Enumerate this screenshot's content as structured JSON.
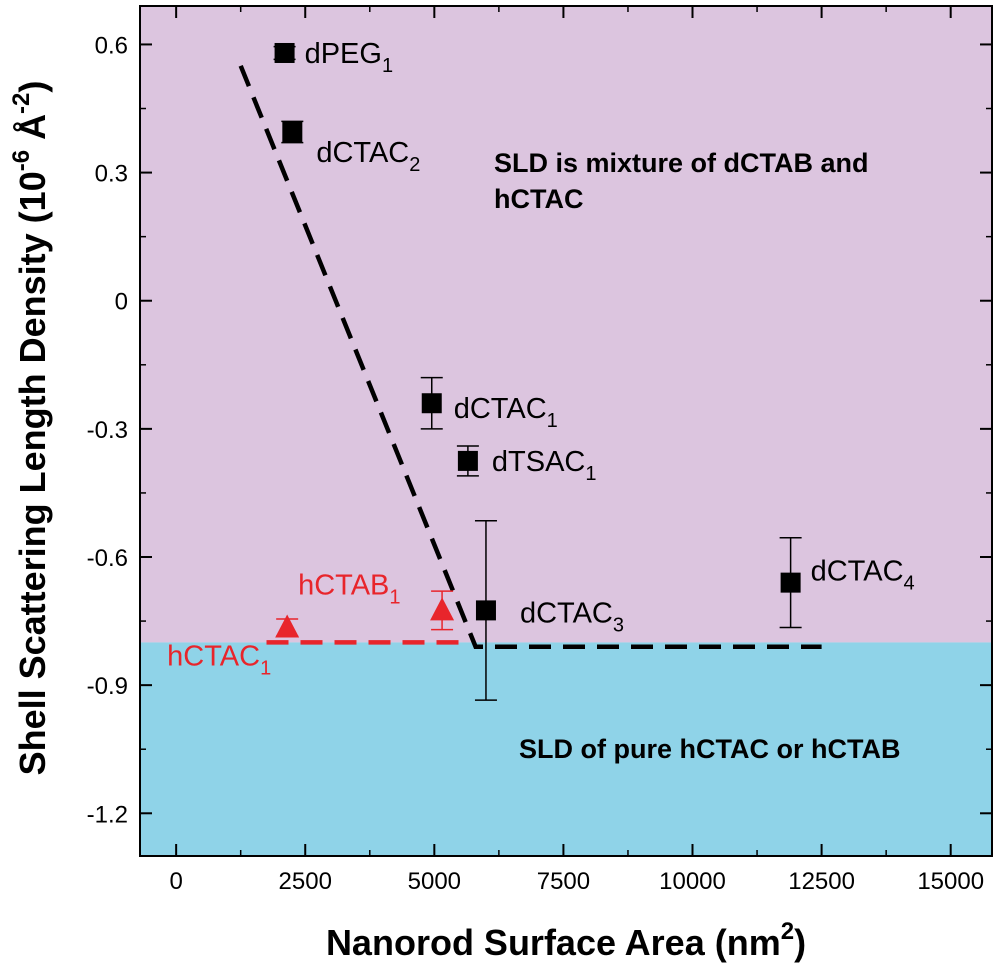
{
  "chart_data": {
    "type": "scatter",
    "xlabel": "Nanorod Surface Area (nm2)",
    "xlabel_main": "Nanorod Surface Area (nm",
    "xlabel_sup": "2",
    "xlabel_end": ")",
    "ylabel": "Shell Scattering Length Density (10-6 Å-2)",
    "ylabel_main": "Shell Scattering Length Density (10",
    "ylabel_sup1": "-6",
    "ylabel_mid": " Å",
    "ylabel_sup2": "-2",
    "ylabel_end": ")",
    "xlim": [
      -700,
      15800
    ],
    "ylim": [
      -1.3,
      0.69
    ],
    "x_ticks": [
      0,
      2500,
      5000,
      7500,
      10000,
      12500,
      15000
    ],
    "x_tick_labels": [
      "0",
      "2500",
      "5000",
      "7500",
      "10000",
      "12500",
      "15000"
    ],
    "y_ticks": [
      0.6,
      0.3,
      0,
      -0.3,
      -0.6,
      -0.9,
      -1.2
    ],
    "y_tick_labels": [
      "0.6",
      "0.3",
      "0",
      "-0.3",
      "-0.6",
      "-0.9",
      "-1.2"
    ],
    "grid": false,
    "regions": [
      {
        "text": "SLD is mixture of dCTAB and",
        "text2": "hCTAC",
        "color": "#dcc5df",
        "y_range": [
          -0.8,
          0.69
        ]
      },
      {
        "text": "SLD of pure hCTAC or hCTAB",
        "text2": "",
        "color": "#8fd3e8",
        "y_range": [
          -1.3,
          -0.8
        ]
      }
    ],
    "series": [
      {
        "marker": "square",
        "color": "#000000",
        "points": [
          {
            "label": "dPEG",
            "sub": "1",
            "x": 2100,
            "y": 0.58,
            "err": 0.015
          },
          {
            "label": "dCTAC",
            "sub": "2",
            "x": 2250,
            "y": 0.395,
            "err": 0.025
          },
          {
            "label": "dCTAC",
            "sub": "1",
            "x": 4950,
            "y": -0.24,
            "err": 0.06
          },
          {
            "label": "dTSAC",
            "sub": "1",
            "x": 5650,
            "y": -0.375,
            "err": 0.035
          },
          {
            "label": "dCTAC",
            "sub": "3",
            "x": 6000,
            "y": -0.725,
            "err": 0.21
          },
          {
            "label": "dCTAC",
            "sub": "4",
            "x": 11900,
            "y": -0.66,
            "err": 0.105
          }
        ]
      },
      {
        "marker": "triangle",
        "color": "#e8252b",
        "points": [
          {
            "label": "hCTAC",
            "sub": "1",
            "x": 2150,
            "y": -0.765,
            "err": 0.02
          },
          {
            "label": "hCTAB",
            "sub": "1",
            "x": 5150,
            "y": -0.725,
            "err": 0.045
          }
        ]
      }
    ],
    "fit_lines": [
      {
        "color": "#000000",
        "style": "dashed",
        "points": [
          [
            1250,
            0.55
          ],
          [
            5800,
            -0.81
          ],
          [
            12500,
            -0.81
          ]
        ]
      },
      {
        "color": "#e8252b",
        "style": "dashed",
        "points": [
          [
            1750,
            -0.8
          ],
          [
            5700,
            -0.8
          ]
        ]
      }
    ]
  }
}
